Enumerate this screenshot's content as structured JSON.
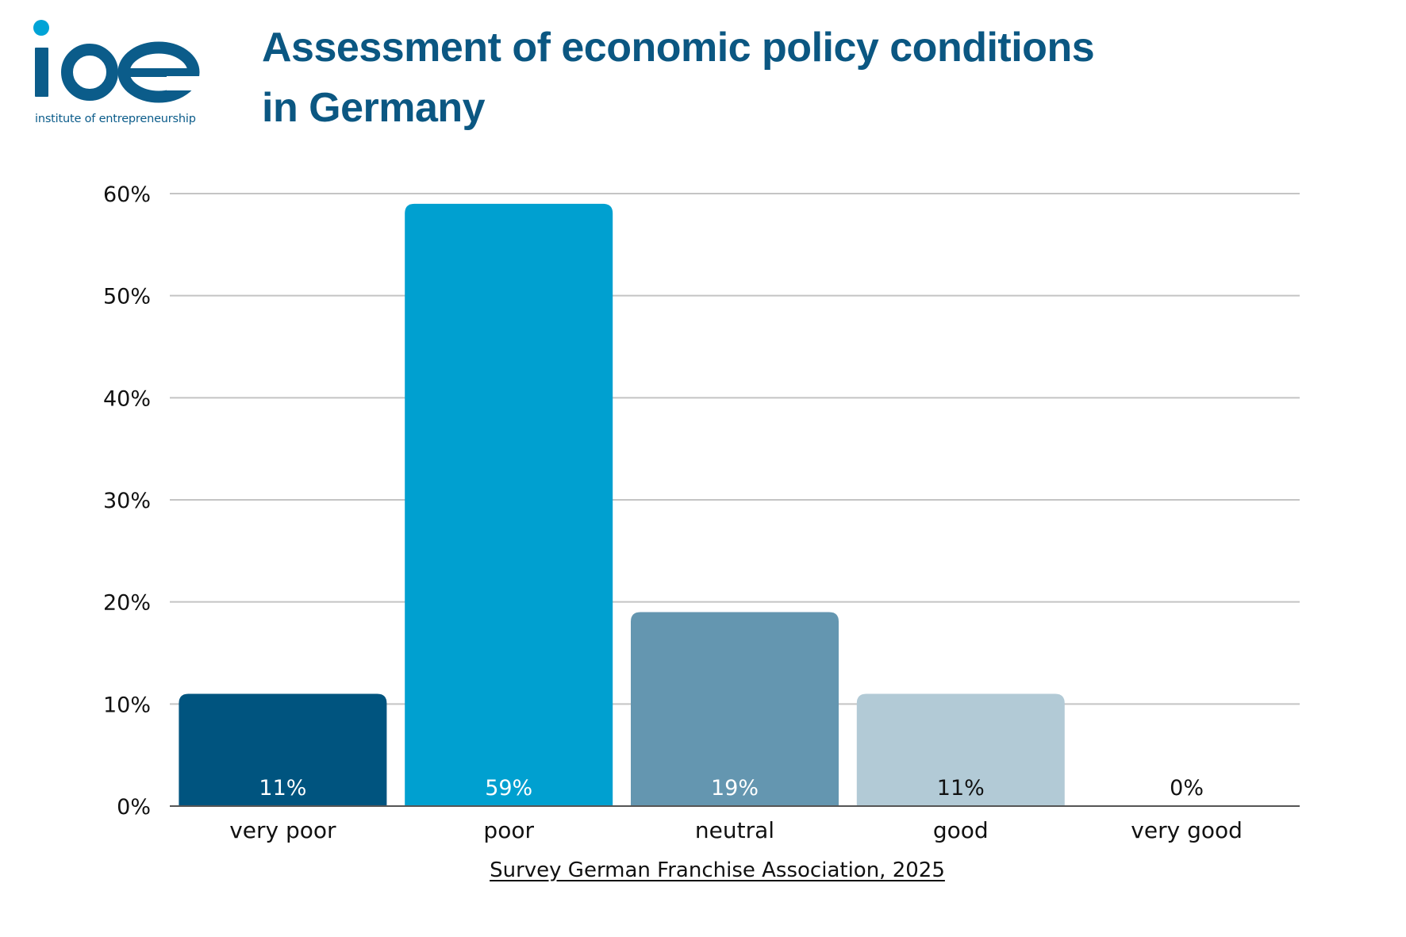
{
  "logo": {
    "wordmark": "ioe",
    "tagline": "institute of entrepreneurship",
    "colors": {
      "dark": "#0b5c8a",
      "dot": "#00a3d6"
    }
  },
  "title_line1": "Assessment of economic policy conditions",
  "title_line2": "in Germany",
  "source": "Survey German Franchise Association, 2025",
  "chart_data": {
    "type": "bar",
    "title": "Assessment of economic policy conditions in Germany",
    "categories": [
      "very poor",
      "poor",
      "neutral",
      "good",
      "very good"
    ],
    "values": [
      11,
      59,
      19,
      11,
      0
    ],
    "value_labels": [
      "11%",
      "59%",
      "19%",
      "11%",
      "0%"
    ],
    "bar_colors": [
      "#00547f",
      "#00a0d0",
      "#6496b0",
      "#b2cad6",
      "#d8e4ea"
    ],
    "value_label_colors": [
      "#ffffff",
      "#ffffff",
      "#ffffff",
      "#111111",
      "#111111"
    ],
    "yticks": [
      "0%",
      "10%",
      "20%",
      "30%",
      "40%",
      "50%",
      "60%"
    ],
    "ylim": [
      0,
      60
    ],
    "xlabel": "",
    "ylabel": "",
    "grid": true,
    "legend": "none"
  }
}
